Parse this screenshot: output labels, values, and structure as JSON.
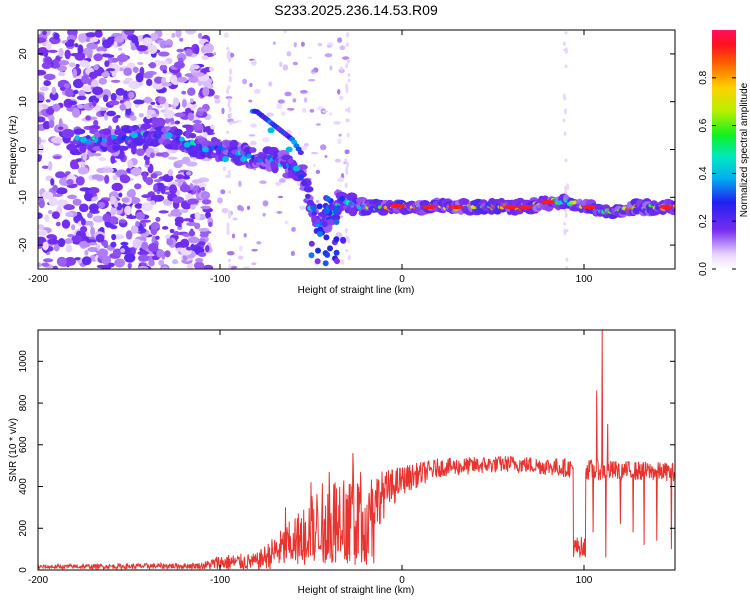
{
  "title": "S233.2025.236.14.53.R09",
  "chart_data": [
    {
      "type": "heatmap",
      "name": "spectrogram",
      "xlabel": "Height of straight line (km)",
      "ylabel": "Frequency (Hz)",
      "xlim": [
        -200,
        150
      ],
      "ylim": [
        -25,
        25
      ],
      "xticks": [
        -200,
        -100,
        0,
        100
      ],
      "yticks": [
        -20,
        -10,
        0,
        10,
        20
      ],
      "colorbar": {
        "label": "Normalized spectral amplitude",
        "range": [
          0,
          1
        ],
        "ticks": [
          "0.0",
          "0.2",
          "0.4",
          "0.6",
          "0.8"
        ],
        "tick_values": [
          0.0,
          0.2,
          0.4,
          0.6,
          0.8
        ]
      },
      "ridge": [
        {
          "x": -175,
          "y": 2
        },
        {
          "x": -160,
          "y": 2
        },
        {
          "x": -145,
          "y": 3
        },
        {
          "x": -130,
          "y": 3
        },
        {
          "x": -115,
          "y": 1
        },
        {
          "x": -100,
          "y": 0
        },
        {
          "x": -90,
          "y": -1
        },
        {
          "x": -80,
          "y": -2
        },
        {
          "x": -70,
          "y": -2
        },
        {
          "x": -60,
          "y": -4
        },
        {
          "x": -55,
          "y": -5
        },
        {
          "x": -50,
          "y": -12
        },
        {
          "x": -45,
          "y": -16
        },
        {
          "x": -40,
          "y": -14
        },
        {
          "x": -35,
          "y": -11
        },
        {
          "x": -30,
          "y": -11
        },
        {
          "x": -20,
          "y": -12
        },
        {
          "x": 0,
          "y": -12
        },
        {
          "x": 20,
          "y": -12
        },
        {
          "x": 50,
          "y": -12
        },
        {
          "x": 70,
          "y": -12
        },
        {
          "x": 80,
          "y": -11
        },
        {
          "x": 90,
          "y": -11
        },
        {
          "x": 100,
          "y": -12
        },
        {
          "x": 110,
          "y": -13
        },
        {
          "x": 130,
          "y": -12
        },
        {
          "x": 150,
          "y": -12
        }
      ],
      "secondary_ridge": [
        {
          "x": -80,
          "y": 8
        },
        {
          "x": -70,
          "y": 5
        },
        {
          "x": -60,
          "y": 2
        },
        {
          "x": -55,
          "y": -1
        }
      ]
    },
    {
      "type": "line",
      "name": "snr",
      "xlabel": "Height of straight line (km)",
      "ylabel": "SNR (10 * v/v)",
      "xlim": [
        -200,
        150
      ],
      "ylim": [
        0,
        1150
      ],
      "xticks": [
        -200,
        -100,
        0,
        100
      ],
      "yticks": [
        0,
        200,
        400,
        600,
        800,
        1000
      ],
      "color": "#e8332e",
      "envelope": [
        {
          "x": -200,
          "base": 15,
          "jitter": 10
        },
        {
          "x": -110,
          "base": 20,
          "jitter": 15
        },
        {
          "x": -100,
          "base": 35,
          "jitter": 40
        },
        {
          "x": -80,
          "base": 40,
          "jitter": 40
        },
        {
          "x": -60,
          "base": 130,
          "jitter": 120
        },
        {
          "x": -45,
          "base": 230,
          "jitter": 180
        },
        {
          "x": -30,
          "base": 300,
          "jitter": 200
        },
        {
          "x": -15,
          "base": 330,
          "jitter": 140
        },
        {
          "x": 0,
          "base": 430,
          "jitter": 70
        },
        {
          "x": 20,
          "base": 490,
          "jitter": 45
        },
        {
          "x": 60,
          "base": 510,
          "jitter": 40
        },
        {
          "x": 90,
          "base": 490,
          "jitter": 45
        },
        {
          "x": 100,
          "base": 480,
          "jitter": 50
        },
        {
          "x": 150,
          "base": 470,
          "jitter": 45
        }
      ],
      "spikes": [
        {
          "x": -64,
          "y": 300
        },
        {
          "x": -50,
          "y": 420
        },
        {
          "x": -40,
          "y": 470
        },
        {
          "x": -27,
          "y": 560
        },
        {
          "x": 110,
          "y": 1150
        },
        {
          "x": 107,
          "y": 860
        },
        {
          "x": 113,
          "y": 700
        }
      ],
      "dips": [
        {
          "x": 95,
          "y": 80
        },
        {
          "x": 96,
          "y": 120
        },
        {
          "x": 98,
          "y": 90
        },
        {
          "x": 100,
          "y": 100
        },
        {
          "x": 105,
          "y": 180
        },
        {
          "x": 112,
          "y": 60
        },
        {
          "x": 120,
          "y": 220
        },
        {
          "x": 127,
          "y": 180
        },
        {
          "x": 133,
          "y": 120
        },
        {
          "x": 140,
          "y": 140
        },
        {
          "x": 148,
          "y": 100
        }
      ]
    }
  ]
}
